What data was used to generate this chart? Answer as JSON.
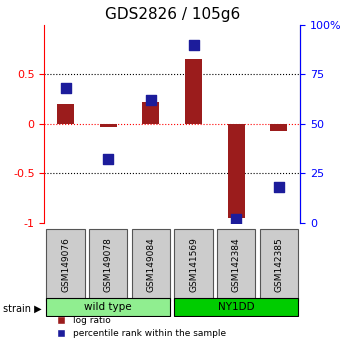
{
  "title": "GDS2826 / 105g6",
  "samples": [
    "GSM149076",
    "GSM149078",
    "GSM149084",
    "GSM141569",
    "GSM142384",
    "GSM142385"
  ],
  "log_ratios": [
    0.2,
    -0.03,
    0.22,
    0.65,
    -0.95,
    -0.07
  ],
  "percentile_ranks": [
    68,
    32,
    62,
    90,
    2,
    18
  ],
  "ylim_left": [
    -1,
    1
  ],
  "ylim_right": [
    0,
    100
  ],
  "yticks_left": [
    -1,
    -0.5,
    0,
    0.5
  ],
  "yticks_right": [
    0,
    25,
    50,
    75,
    100
  ],
  "ytick_labels_left": [
    "-1",
    "-0.5",
    "0",
    "0.5"
  ],
  "ytick_labels_right": [
    "0",
    "25",
    "50",
    "75",
    "100%"
  ],
  "hline_dotted": [
    0.5,
    -0.5
  ],
  "hline_red": 0,
  "bar_color": "#9B1C1C",
  "dot_color": "#1C1C9B",
  "strain_groups": [
    {
      "label": "wild type",
      "start": 0,
      "end": 3,
      "color": "#90EE90"
    },
    {
      "label": "NY1DD",
      "start": 3,
      "end": 6,
      "color": "#00CC00"
    }
  ],
  "strain_label": "strain",
  "legend_items": [
    {
      "label": "log ratio",
      "color": "#9B1C1C"
    },
    {
      "label": "percentile rank within the sample",
      "color": "#1C1C9B"
    }
  ],
  "bar_width": 0.4,
  "dot_size": 50,
  "background_color": "#FFFFFF",
  "grid_color": "#CCCCCC",
  "title_fontsize": 11,
  "axis_fontsize": 8,
  "tick_fontsize": 8,
  "label_box_color": "#CCCCCC",
  "label_box_border": "#555555"
}
